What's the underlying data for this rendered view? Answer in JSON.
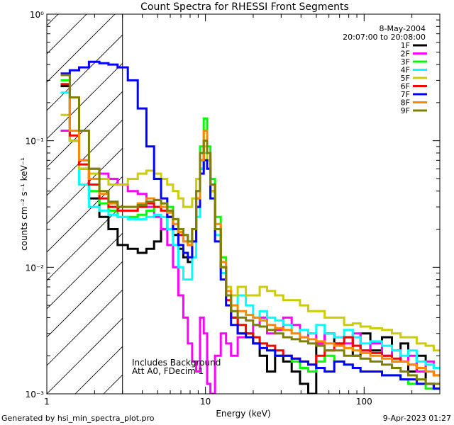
{
  "chart_data": {
    "type": "line",
    "title": "Count Spectra for RHESSI Front Segments",
    "xlabel": "Energy (keV)",
    "ylabel": "counts cm⁻² s⁻¹ keV⁻¹",
    "xscale": "log",
    "yscale": "log",
    "xlim": [
      1,
      300
    ],
    "ylim": [
      0.001,
      1
    ],
    "x_ticks": [
      {
        "value": 1,
        "label": "1"
      },
      {
        "value": 10,
        "label": "10"
      },
      {
        "value": 100,
        "label": "100"
      }
    ],
    "y_ticks": [
      {
        "value": 0.001,
        "label": "10⁻³"
      },
      {
        "value": 0.01,
        "label": "10⁻²"
      },
      {
        "value": 0.1,
        "label": "10⁻¹"
      },
      {
        "value": 1,
        "label": "10⁰"
      }
    ],
    "date": "8-May-2004",
    "time_range": "20:07:00 to 20:08:00",
    "hatched_region_keV": [
      1,
      3
    ],
    "annotations": [
      "Includes Background",
      "Att A0, FDecim 1"
    ],
    "series": [
      {
        "name": "1F",
        "color": "#000000",
        "x": [
          1.3,
          1.5,
          1.7,
          2.0,
          2.3,
          2.6,
          3.0,
          3.5,
          4.0,
          4.5,
          5.0,
          5.5,
          6.0,
          6.5,
          7.0,
          7.5,
          8.0,
          8.5,
          9.0,
          9.5,
          10.0,
          10.5,
          11.0,
          12,
          13,
          14,
          15,
          17,
          19,
          21,
          23,
          26,
          29,
          33,
          37,
          42,
          47,
          53,
          60,
          70,
          80,
          90,
          100,
          120,
          140,
          160,
          180,
          200,
          230,
          260,
          290
        ],
        "y": [
          0.27,
          0.1,
          0.06,
          0.035,
          0.025,
          0.02,
          0.015,
          0.014,
          0.013,
          0.014,
          0.016,
          0.02,
          0.025,
          0.018,
          0.014,
          0.012,
          0.011,
          0.016,
          0.03,
          0.06,
          0.08,
          0.07,
          0.04,
          0.02,
          0.01,
          0.006,
          0.004,
          0.003,
          0.003,
          0.0025,
          0.002,
          0.0015,
          0.002,
          0.0018,
          0.0015,
          0.0012,
          0.001,
          0.0025,
          0.003,
          0.0025,
          0.0028,
          0.002,
          0.003,
          0.0022,
          0.0028,
          0.0018,
          0.0025,
          0.0015,
          0.002,
          0.0012,
          0.0011
        ]
      },
      {
        "name": "2F",
        "color": "#ff00ff",
        "x": [
          1.3,
          1.5,
          1.7,
          2.0,
          2.3,
          2.6,
          3.0,
          3.5,
          4.0,
          4.5,
          5.0,
          5.5,
          6.0,
          6.5,
          7.0,
          7.5,
          8.0,
          8.5,
          9.0,
          9.5,
          10.0,
          10.5,
          11.0,
          12,
          13,
          14,
          15,
          17,
          19,
          21,
          23,
          26,
          29,
          33,
          37,
          42,
          47,
          53,
          60,
          70,
          80,
          90,
          100,
          120,
          140,
          160,
          180,
          200,
          230,
          260,
          290
        ],
        "y": [
          0.12,
          0.1,
          0.07,
          0.06,
          0.055,
          0.05,
          0.045,
          0.04,
          0.038,
          0.03,
          0.025,
          0.02,
          0.015,
          0.01,
          0.006,
          0.004,
          0.0025,
          0.0018,
          0.0015,
          0.004,
          0.003,
          0.0012,
          0.001,
          0.002,
          0.003,
          0.0025,
          0.002,
          0.0028,
          0.003,
          0.0035,
          0.004,
          0.003,
          0.0032,
          0.004,
          0.0035,
          0.0028,
          0.003,
          0.0025,
          0.003,
          0.0028,
          0.0025,
          0.003,
          0.0022,
          0.0025,
          0.002,
          0.0022,
          0.0018,
          0.002,
          0.0015,
          0.0018,
          0.0016
        ]
      },
      {
        "name": "3F",
        "color": "#00ff00",
        "x": [
          1.3,
          1.5,
          1.7,
          2.0,
          2.3,
          2.6,
          3.0,
          3.5,
          4.0,
          4.5,
          5.0,
          5.5,
          6.0,
          6.5,
          7.0,
          7.5,
          8.0,
          8.5,
          9.0,
          9.5,
          10.0,
          10.5,
          11.0,
          12,
          13,
          14,
          15,
          17,
          19,
          21,
          23,
          26,
          29,
          33,
          37,
          42,
          47,
          53,
          60,
          70,
          80,
          90,
          100,
          120,
          140,
          160,
          180,
          200,
          230,
          260,
          290
        ],
        "y": [
          0.3,
          0.1,
          0.06,
          0.04,
          0.032,
          0.028,
          0.025,
          0.025,
          0.026,
          0.028,
          0.03,
          0.032,
          0.03,
          0.024,
          0.02,
          0.018,
          0.016,
          0.02,
          0.04,
          0.09,
          0.15,
          0.09,
          0.05,
          0.025,
          0.012,
          0.006,
          0.004,
          0.0035,
          0.003,
          0.0028,
          0.0025,
          0.0022,
          0.002,
          0.002,
          0.0018,
          0.0016,
          0.0015,
          0.0018,
          0.002,
          0.0018,
          0.0017,
          0.0016,
          0.0015,
          0.0015,
          0.0014,
          0.0014,
          0.0013,
          0.0012,
          0.0012,
          0.0011,
          0.0011
        ]
      },
      {
        "name": "4F",
        "color": "#00ffff",
        "x": [
          1.3,
          1.5,
          1.7,
          2.0,
          2.3,
          2.6,
          3.0,
          3.5,
          4.0,
          4.5,
          5.0,
          5.5,
          6.0,
          6.5,
          7.0,
          7.5,
          8.0,
          8.5,
          9.0,
          9.5,
          10.0,
          10.5,
          11.0,
          12,
          13,
          14,
          15,
          17,
          19,
          21,
          23,
          26,
          29,
          33,
          37,
          42,
          47,
          53,
          60,
          70,
          80,
          90,
          100,
          120,
          140,
          160,
          180,
          200,
          230,
          260,
          290
        ],
        "y": [
          0.24,
          0.12,
          0.045,
          0.03,
          0.028,
          0.026,
          0.025,
          0.024,
          0.024,
          0.025,
          0.026,
          0.025,
          0.02,
          0.015,
          0.01,
          0.008,
          0.008,
          0.012,
          0.025,
          0.06,
          0.08,
          0.06,
          0.035,
          0.018,
          0.009,
          0.006,
          0.005,
          0.006,
          0.005,
          0.004,
          0.0045,
          0.004,
          0.0038,
          0.0035,
          0.003,
          0.0032,
          0.003,
          0.0035,
          0.003,
          0.0028,
          0.0032,
          0.0028,
          0.0025,
          0.0026,
          0.0024,
          0.0022,
          0.002,
          0.0022,
          0.0018,
          0.0017,
          0.0016
        ]
      },
      {
        "name": "5F",
        "color": "#cccc00",
        "x": [
          1.3,
          1.5,
          1.7,
          2.0,
          2.3,
          2.6,
          3.0,
          3.5,
          4.0,
          4.5,
          5.0,
          5.5,
          6.0,
          6.5,
          7.0,
          7.5,
          8.0,
          8.5,
          9.0,
          9.5,
          10.0,
          10.5,
          11.0,
          12,
          13,
          14,
          15,
          17,
          19,
          21,
          23,
          26,
          29,
          33,
          37,
          42,
          47,
          53,
          60,
          70,
          80,
          90,
          100,
          120,
          140,
          160,
          180,
          200,
          230,
          260,
          290
        ],
        "y": [
          0.16,
          0.1,
          0.06,
          0.055,
          0.05,
          0.045,
          0.045,
          0.05,
          0.055,
          0.058,
          0.055,
          0.05,
          0.045,
          0.04,
          0.035,
          0.03,
          0.03,
          0.035,
          0.05,
          0.08,
          0.09,
          0.07,
          0.04,
          0.02,
          0.01,
          0.007,
          0.006,
          0.007,
          0.006,
          0.006,
          0.007,
          0.0065,
          0.006,
          0.0055,
          0.0055,
          0.005,
          0.0045,
          0.0045,
          0.004,
          0.004,
          0.0035,
          0.0036,
          0.0034,
          0.0033,
          0.0032,
          0.003,
          0.0028,
          0.0028,
          0.0025,
          0.0024,
          0.0022
        ]
      },
      {
        "name": "6F",
        "color": "#ff0000",
        "x": [
          1.3,
          1.5,
          1.7,
          2.0,
          2.3,
          2.6,
          3.0,
          3.5,
          4.0,
          4.5,
          5.0,
          5.5,
          6.0,
          6.5,
          7.0,
          7.5,
          8.0,
          8.5,
          9.0,
          9.5,
          10.0,
          10.5,
          11.0,
          12,
          13,
          14,
          15,
          17,
          19,
          21,
          23,
          26,
          29,
          33,
          37,
          42,
          47,
          53,
          60,
          70,
          80,
          90,
          100,
          120,
          140,
          160,
          180,
          200,
          230,
          260,
          290
        ],
        "y": [
          0.28,
          0.11,
          0.065,
          0.045,
          0.035,
          0.03,
          0.028,
          0.028,
          0.03,
          0.032,
          0.03,
          0.028,
          0.025,
          0.02,
          0.018,
          0.016,
          0.015,
          0.02,
          0.035,
          0.07,
          0.1,
          0.08,
          0.045,
          0.02,
          0.01,
          0.0055,
          0.004,
          0.0035,
          0.003,
          0.0028,
          0.0025,
          0.0024,
          0.0022,
          0.002,
          0.0019,
          0.0018,
          0.0017,
          0.002,
          0.0022,
          0.0025,
          0.0028,
          0.0024,
          0.0022,
          0.0021,
          0.002,
          0.0019,
          0.0018,
          0.0017,
          0.0016,
          0.0015,
          0.0014
        ]
      },
      {
        "name": "7F",
        "color": "#0000ff",
        "x": [
          1.3,
          1.5,
          1.7,
          2.0,
          2.3,
          2.6,
          3.0,
          3.5,
          4.0,
          4.5,
          5.0,
          5.5,
          6.0,
          6.5,
          7.0,
          7.5,
          8.0,
          8.5,
          9.0,
          9.5,
          10.0,
          10.5,
          11.0,
          12,
          13,
          14,
          15,
          17,
          19,
          21,
          23,
          26,
          29,
          33,
          37,
          42,
          47,
          53,
          60,
          70,
          80,
          90,
          100,
          120,
          140,
          160,
          180,
          200,
          230,
          260,
          290
        ],
        "y": [
          0.34,
          0.36,
          0.38,
          0.42,
          0.41,
          0.4,
          0.38,
          0.3,
          0.18,
          0.09,
          0.05,
          0.035,
          0.025,
          0.02,
          0.015,
          0.013,
          0.012,
          0.016,
          0.03,
          0.055,
          0.07,
          0.06,
          0.035,
          0.016,
          0.008,
          0.005,
          0.0035,
          0.003,
          0.0028,
          0.0025,
          0.0023,
          0.0022,
          0.002,
          0.002,
          0.0019,
          0.0018,
          0.0017,
          0.0016,
          0.0015,
          0.0018,
          0.0017,
          0.0016,
          0.0015,
          0.0015,
          0.0014,
          0.0014,
          0.0013,
          0.0013,
          0.0012,
          0.0012,
          0.0011
        ]
      },
      {
        "name": "8F",
        "color": "#ff8800",
        "x": [
          1.3,
          1.5,
          1.7,
          2.0,
          2.3,
          2.6,
          3.0,
          3.5,
          4.0,
          4.5,
          5.0,
          5.5,
          6.0,
          6.5,
          7.0,
          7.5,
          8.0,
          8.5,
          9.0,
          9.5,
          10.0,
          10.5,
          11.0,
          12,
          13,
          14,
          15,
          17,
          19,
          21,
          23,
          26,
          29,
          33,
          37,
          42,
          47,
          53,
          60,
          70,
          80,
          90,
          100,
          120,
          140,
          160,
          180,
          200,
          230,
          260,
          290
        ],
        "y": [
          0.33,
          0.12,
          0.07,
          0.05,
          0.038,
          0.032,
          0.03,
          0.03,
          0.032,
          0.035,
          0.034,
          0.03,
          0.027,
          0.022,
          0.019,
          0.016,
          0.015,
          0.02,
          0.035,
          0.07,
          0.12,
          0.08,
          0.045,
          0.022,
          0.011,
          0.0065,
          0.005,
          0.0045,
          0.0042,
          0.004,
          0.0038,
          0.0035,
          0.0033,
          0.0032,
          0.003,
          0.0028,
          0.0027,
          0.0026,
          0.0025,
          0.0024,
          0.0023,
          0.0022,
          0.0021,
          0.002,
          0.0019,
          0.0018,
          0.0018,
          0.0017,
          0.0016,
          0.0015,
          0.0014
        ]
      },
      {
        "name": "9F",
        "color": "#808000",
        "x": [
          1.3,
          1.5,
          1.7,
          2.0,
          2.3,
          2.6,
          3.0,
          3.5,
          4.0,
          4.5,
          5.0,
          5.5,
          6.0,
          6.5,
          7.0,
          7.5,
          8.0,
          8.5,
          9.0,
          9.5,
          10.0,
          10.5,
          11.0,
          12,
          13,
          14,
          15,
          17,
          19,
          21,
          23,
          26,
          29,
          33,
          37,
          42,
          47,
          53,
          60,
          70,
          80,
          90,
          100,
          120,
          140,
          160,
          180,
          200,
          230,
          260,
          290
        ],
        "y": [
          0.33,
          0.22,
          0.12,
          0.06,
          0.04,
          0.033,
          0.03,
          0.03,
          0.031,
          0.033,
          0.034,
          0.032,
          0.028,
          0.024,
          0.02,
          0.018,
          0.016,
          0.02,
          0.04,
          0.08,
          0.1,
          0.08,
          0.045,
          0.02,
          0.01,
          0.006,
          0.0045,
          0.004,
          0.0038,
          0.0035,
          0.0034,
          0.0032,
          0.003,
          0.0028,
          0.0027,
          0.0026,
          0.0025,
          0.0024,
          0.0022,
          0.0022,
          0.002,
          0.002,
          0.0019,
          0.0018,
          0.0017,
          0.0016,
          0.0015,
          0.0014,
          0.0013,
          0.0012,
          0.0012
        ]
      }
    ]
  },
  "footer": {
    "generated_by": "Generated by hsi_min_spectra_plot.pro",
    "timestamp": "9-Apr-2023 01:27"
  }
}
